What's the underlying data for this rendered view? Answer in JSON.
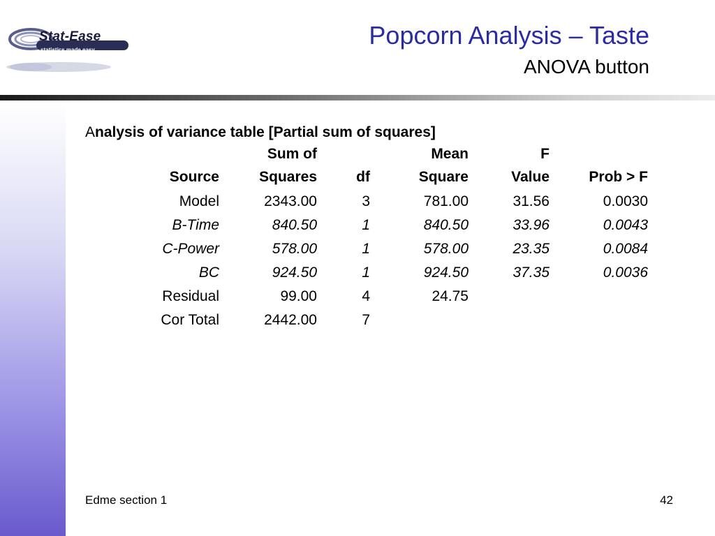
{
  "logo": {
    "wordmark": "Stat-Ease",
    "tagline": "statistics made easy"
  },
  "slide": {
    "title": "Popcorn Analysis – Taste",
    "subtitle": "ANOVA button"
  },
  "anova": {
    "caption_first": "A",
    "caption_rest": "nalysis of variance table [Partial sum of squares]",
    "headers_line1": [
      "",
      "Sum of",
      "",
      "Mean",
      "F",
      ""
    ],
    "headers_line2": [
      "Source",
      "Squares",
      "df",
      "Square",
      "Value",
      "Prob > F"
    ],
    "rows": [
      {
        "source": "Model",
        "ss": "2343.00",
        "df": "3",
        "ms": "781.00",
        "f": "31.56",
        "p": "0.0030",
        "italic": false
      },
      {
        "source": "B-Time",
        "ss": "840.50",
        "df": "1",
        "ms": "840.50",
        "f": "33.96",
        "p": "0.0043",
        "italic": true
      },
      {
        "source": "C-Power",
        "ss": "578.00",
        "df": "1",
        "ms": "578.00",
        "f": "23.35",
        "p": "0.0084",
        "italic": true
      },
      {
        "source": "BC",
        "ss": "924.50",
        "df": "1",
        "ms": "924.50",
        "f": "37.35",
        "p": "0.0036",
        "italic": true
      },
      {
        "source": "Residual",
        "ss": "99.00",
        "df": "4",
        "ms": "24.75",
        "f": "",
        "p": "",
        "italic": false
      },
      {
        "source": "Cor Total",
        "ss": "2442.00",
        "df": "7",
        "ms": "",
        "f": "",
        "p": "",
        "italic": false
      }
    ]
  },
  "footer": {
    "left": "Edme section 1",
    "page_number": "42"
  },
  "colors": {
    "title": "#2b2ba6",
    "band_bottom": "#6a5acd"
  }
}
